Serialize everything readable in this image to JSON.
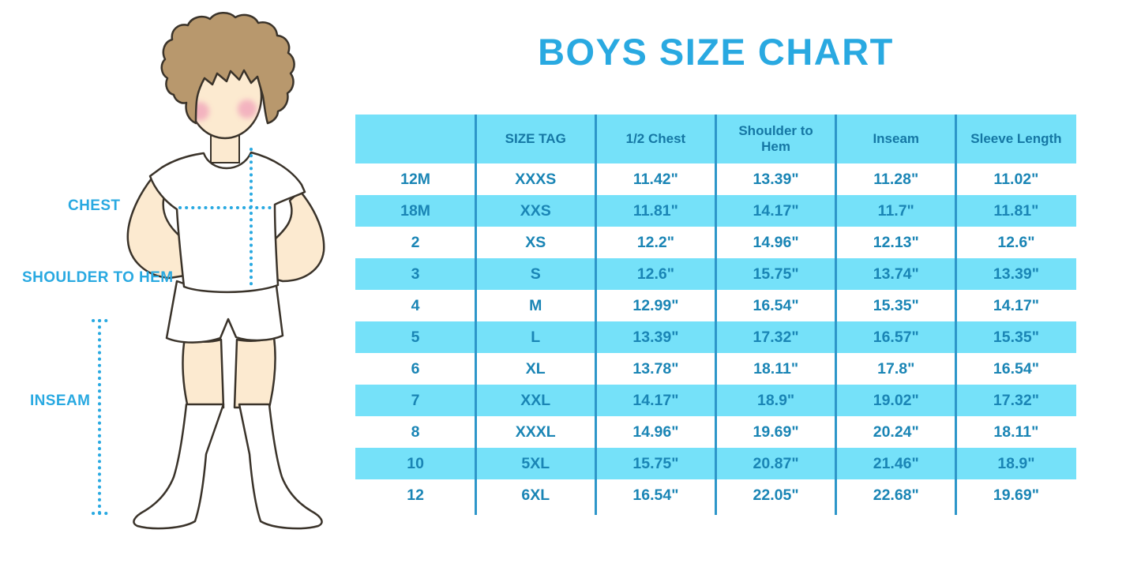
{
  "title": "BOYS SIZE CHART",
  "figure": {
    "labels": {
      "chest": "CHEST",
      "shoulder_to_hem": "SHOULDER TO HEM",
      "inseam": "INSEAM"
    }
  },
  "colors": {
    "accent_blue": "#29A9E1",
    "table_stripe_cyan": "#75E1F9",
    "table_divider_blue": "#2D96C9",
    "header_text_blue": "#1577A4",
    "cell_text_blue": "#1A85B5",
    "skin": "#FCEAD0",
    "hair_brown": "#B8986D",
    "blush_pink": "#F1A6BB"
  },
  "chart_data": {
    "type": "table",
    "title": "BOYS SIZE CHART",
    "columns": [
      "",
      "SIZE TAG",
      "1/2 Chest",
      "Shoulder to Hem",
      "Inseam",
      "Sleeve Length"
    ],
    "rows": [
      [
        "12M",
        "XXXS",
        "11.42\"",
        "13.39\"",
        "11.28\"",
        "11.02\""
      ],
      [
        "18M",
        "XXS",
        "11.81\"",
        "14.17\"",
        "11.7\"",
        "11.81\""
      ],
      [
        "2",
        "XS",
        "12.2\"",
        "14.96\"",
        "12.13\"",
        "12.6\""
      ],
      [
        "3",
        "S",
        "12.6\"",
        "15.75\"",
        "13.74\"",
        "13.39\""
      ],
      [
        "4",
        "M",
        "12.99\"",
        "16.54\"",
        "15.35\"",
        "14.17\""
      ],
      [
        "5",
        "L",
        "13.39\"",
        "17.32\"",
        "16.57\"",
        "15.35\""
      ],
      [
        "6",
        "XL",
        "13.78\"",
        "18.11\"",
        "17.8\"",
        "16.54\""
      ],
      [
        "7",
        "XXL",
        "14.17\"",
        "18.9\"",
        "19.02\"",
        "17.32\""
      ],
      [
        "8",
        "XXXL",
        "14.96\"",
        "19.69\"",
        "20.24\"",
        "18.11\""
      ],
      [
        "10",
        "5XL",
        "15.75\"",
        "20.87\"",
        "21.46\"",
        "18.9\""
      ],
      [
        "12",
        "6XL",
        "16.54\"",
        "22.05\"",
        "22.68\"",
        "19.69\""
      ]
    ]
  }
}
